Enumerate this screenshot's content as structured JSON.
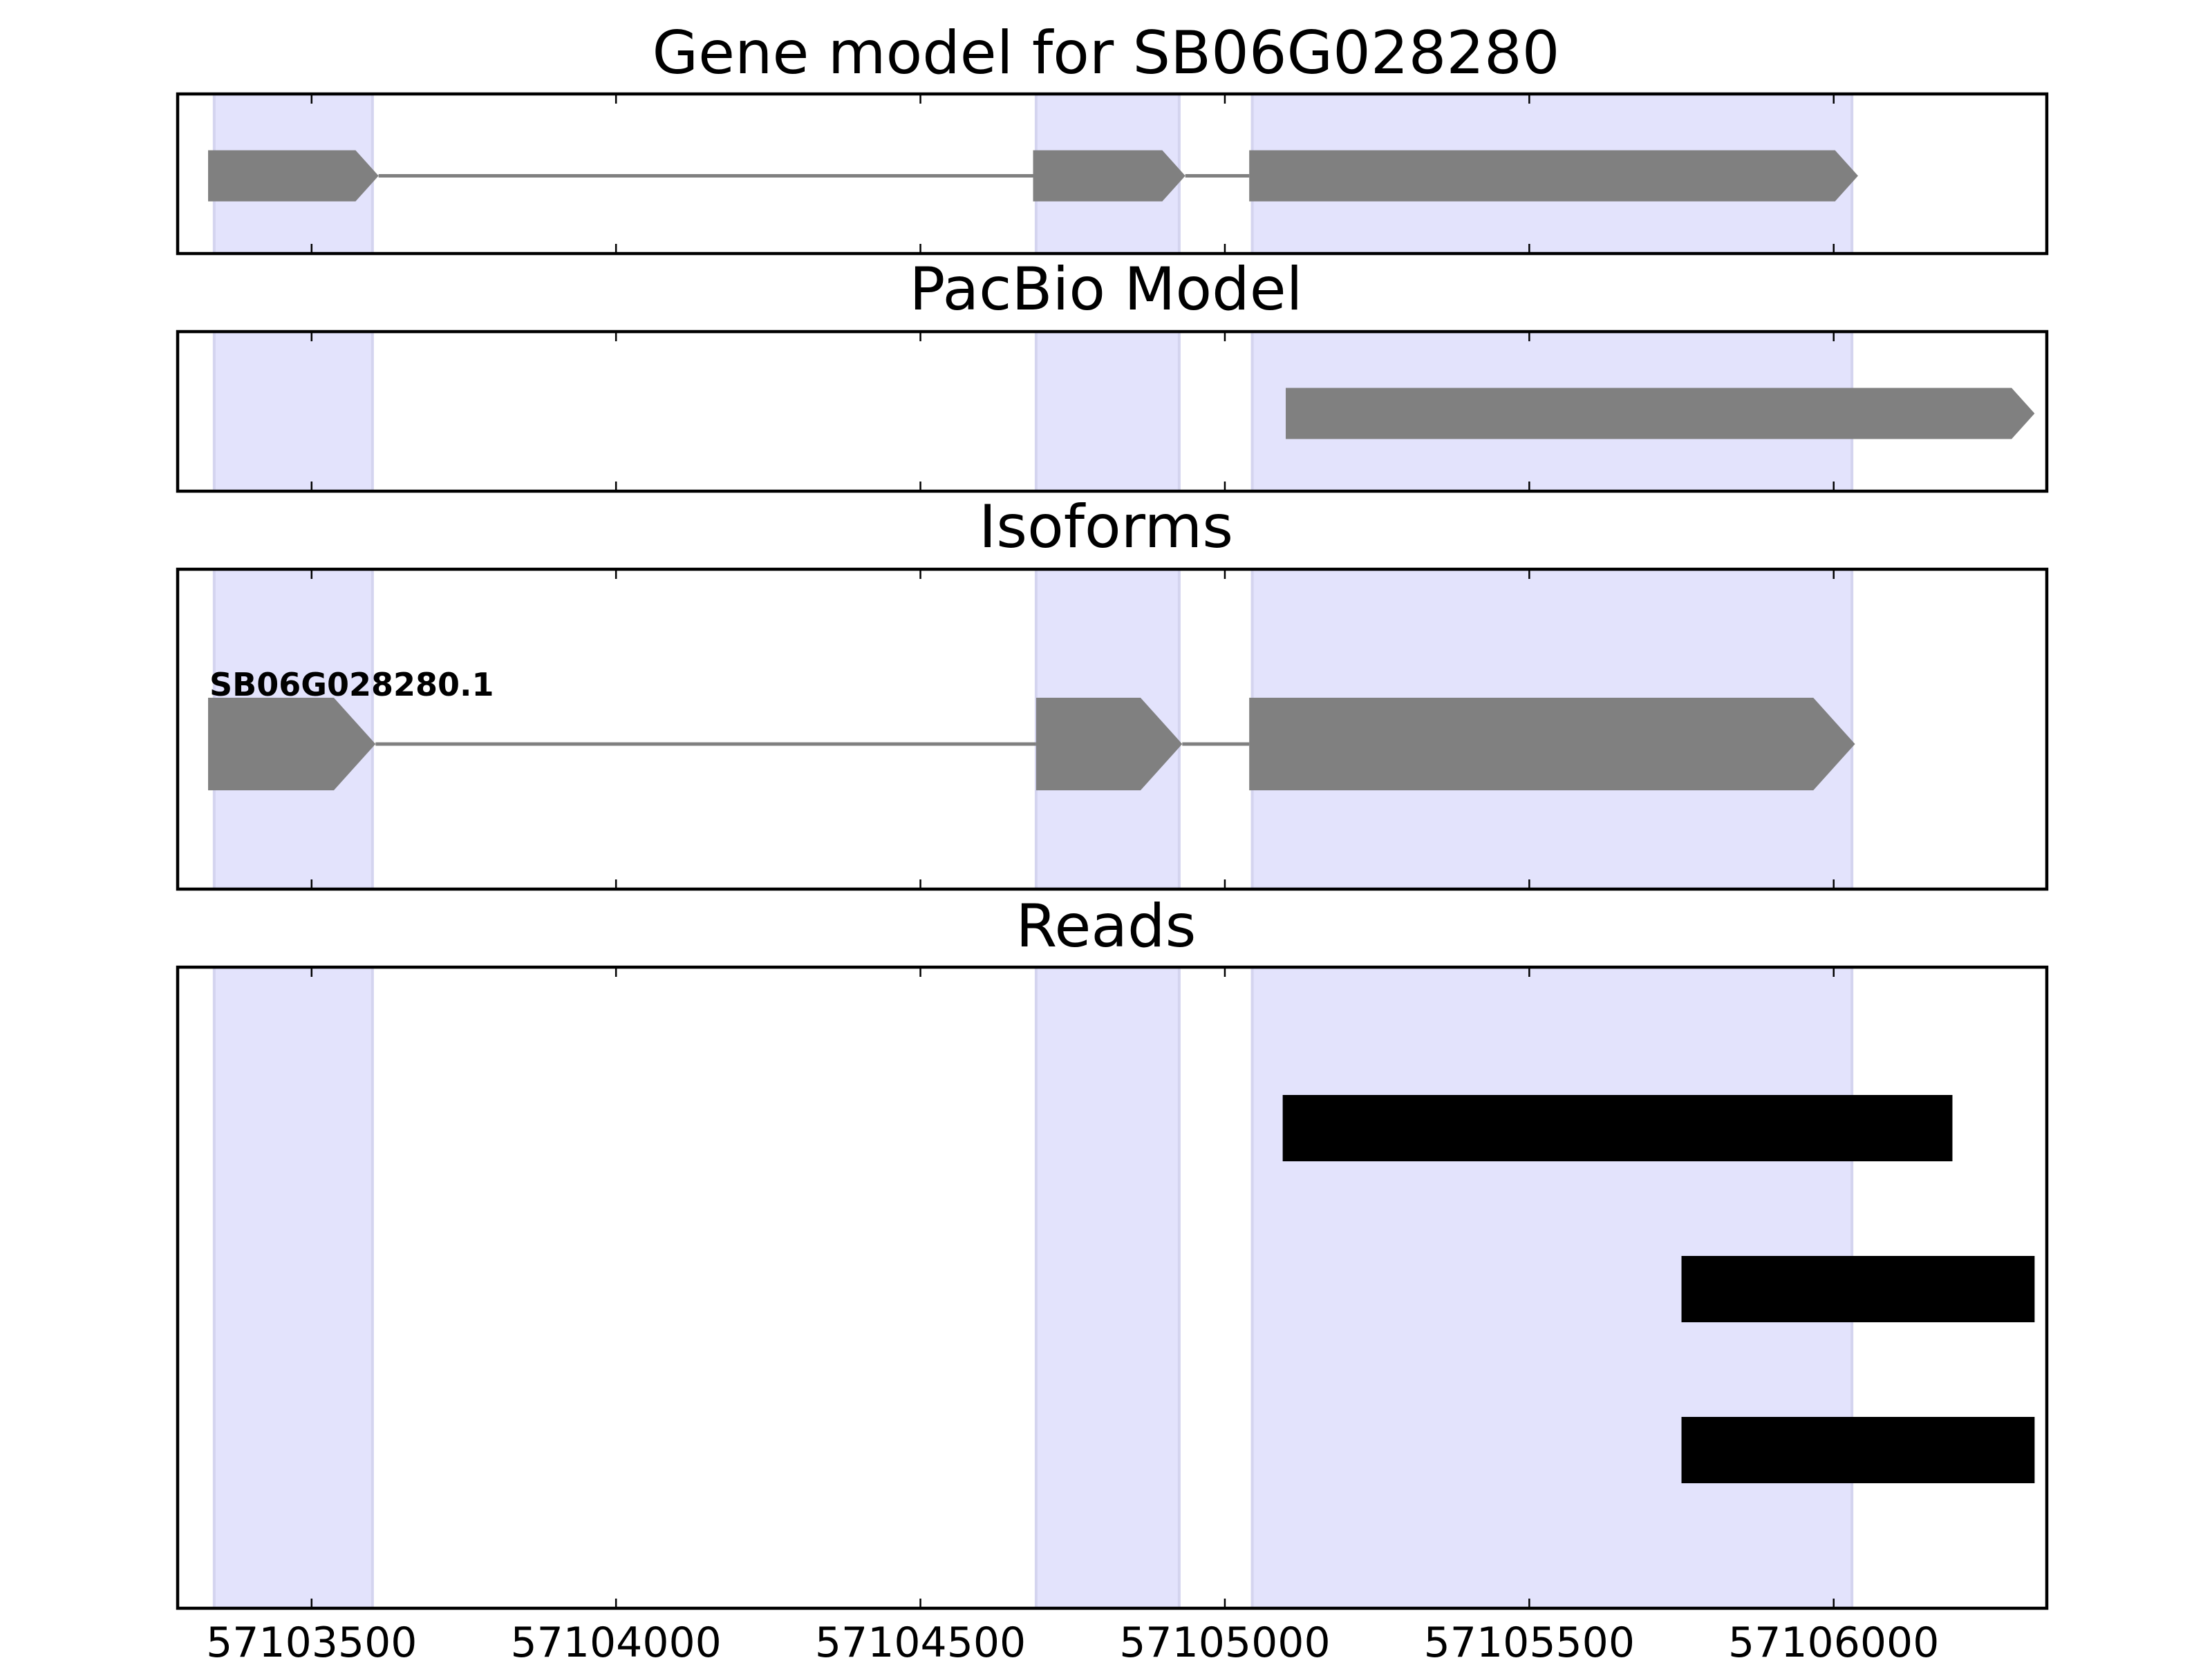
{
  "chart_data": {
    "type": "gene-track",
    "x_ticks": [
      57103500,
      57104000,
      57104500,
      57105000,
      57105500,
      57106000
    ],
    "x_tick_labels": [
      "57103500",
      "57104000",
      "57104500",
      "57105000",
      "57105500",
      "57106000"
    ],
    "xlim": [
      57103280,
      57106350
    ],
    "exon_bands": [
      [
        57103340,
        57103600
      ],
      [
        57104690,
        57104925
      ],
      [
        57105045,
        57106030
      ]
    ],
    "colors": {
      "band_fill": "#e3e3fc",
      "band_edge": "#d4d4ef",
      "feature": "#808080",
      "read": "#000000"
    },
    "panels": [
      {
        "title": "Gene model for SB06G028280",
        "features": [
          {
            "kind": "gene",
            "exons": [
              [
                57103330,
                57103610
              ],
              [
                57104685,
                57104935
              ],
              [
                57105040,
                57106040
              ]
            ]
          }
        ]
      },
      {
        "title": "PacBio Model",
        "features": [
          {
            "kind": "model",
            "exons": [
              [
                57105100,
                57106330
              ]
            ]
          }
        ]
      },
      {
        "title": "Isoforms",
        "features": [
          {
            "kind": "isoform",
            "label": "SB06G028280.1",
            "exons": [
              [
                57103330,
                57103605
              ],
              [
                57104690,
                57104930
              ],
              [
                57105040,
                57106035
              ]
            ]
          }
        ]
      },
      {
        "title": "Reads",
        "features": [
          {
            "kind": "read",
            "exons": [
              [
                57105095,
                57106195
              ]
            ]
          },
          {
            "kind": "read",
            "exons": [
              [
                57105750,
                57106330
              ]
            ]
          },
          {
            "kind": "read",
            "exons": [
              [
                57105750,
                57106330
              ]
            ]
          }
        ]
      }
    ]
  }
}
